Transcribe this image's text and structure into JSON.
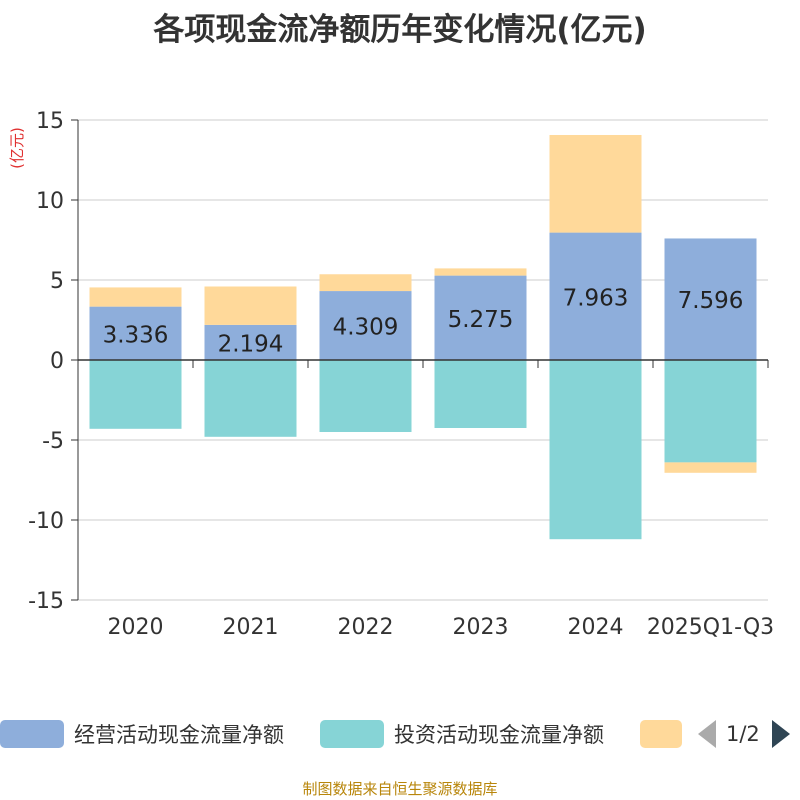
{
  "chart_data": {
    "type": "bar",
    "stacked": true,
    "title": "各项现金流净额历年变化情况(亿元)",
    "ylabel": "(亿元)",
    "ylim": [
      -15,
      15
    ],
    "yticks": [
      15,
      10,
      5,
      0,
      -5,
      -10,
      -15
    ],
    "categories": [
      "2020",
      "2021",
      "2022",
      "2023",
      "2024",
      "2025Q1-Q3"
    ],
    "series": [
      {
        "name": "经营活动现金流量净额",
        "color": "#8eaedb",
        "values": [
          3.336,
          2.194,
          4.309,
          5.275,
          7.963,
          7.596
        ],
        "labels": [
          "3.336",
          "2.194",
          "4.309",
          "5.275",
          "7.963",
          "7.596"
        ]
      },
      {
        "name": "投资活动现金流量净额",
        "color": "#86d4d6",
        "values": [
          -4.3,
          -4.8,
          -4.5,
          -4.25,
          -11.2,
          -6.4
        ]
      },
      {
        "name": "",
        "color": "#ffd99a",
        "values": [
          1.2,
          2.4,
          1.05,
          0.45,
          6.1,
          -0.65
        ]
      }
    ],
    "legend_position": "bottom",
    "page_indicator": "1/2",
    "source": "制图数据来自恒生聚源数据库"
  }
}
